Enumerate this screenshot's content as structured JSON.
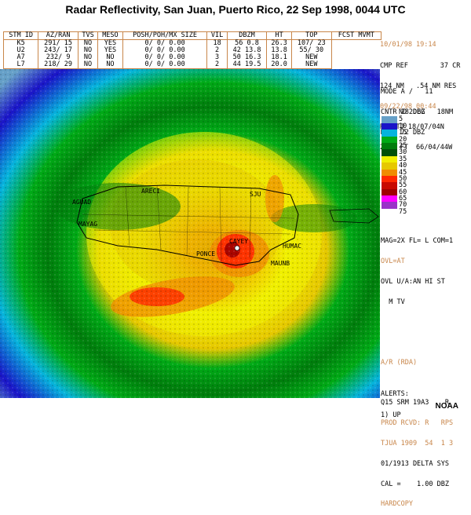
{
  "title": "Radar Reflectivity, San Juan, Puerto Rico, 22 Sep 1998, 0044 UTC",
  "storm_table": {
    "headers": [
      "STM ID",
      "AZ/RAN",
      "TVS",
      "MESO",
      "POSH/POH/MX SIZE",
      "VIL",
      "DBZM",
      "HT",
      "TOP",
      "FCST MVMT"
    ],
    "rows": [
      [
        "K5",
        "291/ 15",
        "NO",
        "YES",
        "0/ 0/ 0.00",
        "18",
        "56",
        "0.8",
        "26.3",
        "107/ 23"
      ],
      [
        "U2",
        "243/ 17",
        "NO",
        "YES",
        "0/ 0/ 0.00",
        "2",
        "42",
        "13.8",
        "13.8",
        "55/ 30"
      ],
      [
        "A7",
        "232/ 9",
        "NO",
        "NO",
        "0/ 0/ 0.00",
        "3",
        "50",
        "16.3",
        "18.1",
        "NEW"
      ],
      [
        "L7",
        "218/ 29",
        "NO",
        "NO",
        "0/ 0/ 0.00",
        "2",
        "44",
        "19.5",
        "20.0",
        "NEW"
      ]
    ]
  },
  "info_top": {
    "datetime": "10/01/98 19:14",
    "product": "CMP REF        37 CR",
    "range": "124 NM   .54 NM RES",
    "vol_time": "09/22/98 00:44",
    "rda": "RDA:TJ 18/07/04N",
    "elev": "2307 FT  66/04/44W"
  },
  "info_mode": {
    "mode": "MODE A /   11",
    "cntr": "CNTR 282DEG   18NM",
    "max": "MAX= 72 DBZ"
  },
  "legend": {
    "col_nd": "ND",
    "col_dbz": "DBZ",
    "levels": [
      {
        "label": "5",
        "color": "#66a0c8"
      },
      {
        "label": "10",
        "color": "#1a14c8"
      },
      {
        "label": "15",
        "color": "#06b4dc"
      },
      {
        "label": "20",
        "color": "#00aa16"
      },
      {
        "label": "25",
        "color": "#007d0c"
      },
      {
        "label": "30",
        "color": "#005008"
      },
      {
        "label": "35",
        "color": "#f0f000"
      },
      {
        "label": "40",
        "color": "#e6c800"
      },
      {
        "label": "45",
        "color": "#f08c00"
      },
      {
        "label": "50",
        "color": "#ff2800"
      },
      {
        "label": "55",
        "color": "#c80a00"
      },
      {
        "label": "60",
        "color": "#a00000"
      },
      {
        "label": "65",
        "color": "#ff00ff"
      },
      {
        "label": "70",
        "color": "#9a32c8"
      },
      {
        "label": "75",
        "color": "#ffffff"
      }
    ]
  },
  "info_lower": {
    "mag": "MAG=2X FL= L COM=1",
    "ovl": "OVL=AT",
    "ovl_u": "OVL U/A:AN HI ST",
    "ovl_u2": "  M TV",
    "ar": "A/R (RDA)",
    "q": "Q15 SRM 19A3    R",
    "prod": "PROD RCVD: R   RPS",
    "tjua": "TJUA 1909  54  1 3",
    "delta": "01/1913 DELTA SYS",
    "cal": "CAL =    1.00 DBZ",
    "hard": "HARDCOPY"
  },
  "alerts": {
    "label": "ALERTS:",
    "item": "1) UP"
  },
  "city_labels": [
    "ARECI",
    "AGUAD",
    "MAYAG",
    "PONCE",
    "CAYEY",
    "HUMAC",
    "MAUNB",
    "SJU"
  ],
  "credit": "NOAA"
}
